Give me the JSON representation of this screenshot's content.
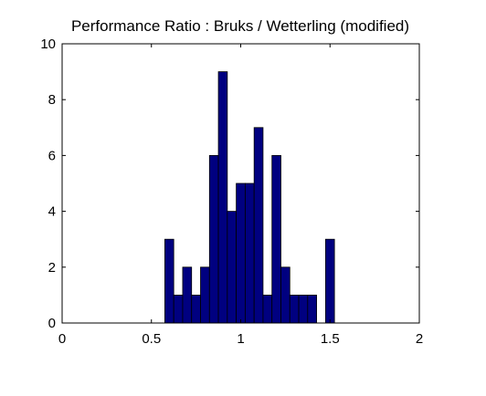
{
  "chart_data": {
    "type": "bar",
    "title": "Performance Ratio : Bruks / Wetterling (modified)",
    "xlabel": "",
    "ylabel": "",
    "xlim": [
      0,
      2
    ],
    "ylim": [
      0,
      10
    ],
    "xticks": [
      0,
      0.5,
      1,
      1.5,
      2
    ],
    "xtick_labels": [
      "0",
      "0.5",
      "1",
      "1.5",
      "2"
    ],
    "yticks": [
      0,
      2,
      4,
      6,
      8,
      10
    ],
    "ytick_labels": [
      "0",
      "2",
      "4",
      "6",
      "8",
      "10"
    ],
    "grid": false,
    "legend": "none",
    "bar_color": "#000080",
    "bar_edge_color": "#000000",
    "bin_width": 0.05,
    "bins": [
      {
        "x0": 0.575,
        "x1": 0.625,
        "count": 3
      },
      {
        "x0": 0.625,
        "x1": 0.675,
        "count": 1
      },
      {
        "x0": 0.675,
        "x1": 0.725,
        "count": 2
      },
      {
        "x0": 0.725,
        "x1": 0.775,
        "count": 1
      },
      {
        "x0": 0.775,
        "x1": 0.825,
        "count": 2
      },
      {
        "x0": 0.825,
        "x1": 0.875,
        "count": 6
      },
      {
        "x0": 0.875,
        "x1": 0.925,
        "count": 9
      },
      {
        "x0": 0.925,
        "x1": 0.975,
        "count": 4
      },
      {
        "x0": 0.975,
        "x1": 1.025,
        "count": 5
      },
      {
        "x0": 1.025,
        "x1": 1.075,
        "count": 5
      },
      {
        "x0": 1.075,
        "x1": 1.125,
        "count": 7
      },
      {
        "x0": 1.125,
        "x1": 1.175,
        "count": 1
      },
      {
        "x0": 1.175,
        "x1": 1.225,
        "count": 6
      },
      {
        "x0": 1.225,
        "x1": 1.275,
        "count": 2
      },
      {
        "x0": 1.275,
        "x1": 1.325,
        "count": 1
      },
      {
        "x0": 1.325,
        "x1": 1.375,
        "count": 1
      },
      {
        "x0": 1.375,
        "x1": 1.425,
        "count": 1
      },
      {
        "x0": 1.425,
        "x1": 1.475,
        "count": 0
      },
      {
        "x0": 1.475,
        "x1": 1.525,
        "count": 3
      }
    ]
  }
}
